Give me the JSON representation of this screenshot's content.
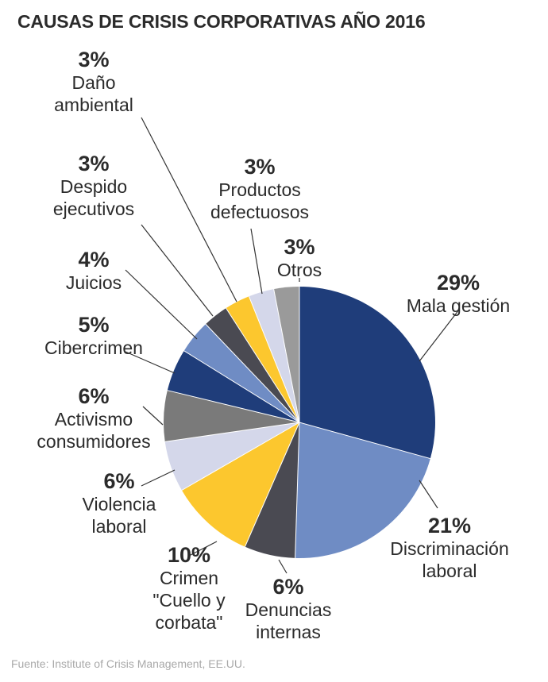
{
  "title": "CAUSAS DE CRISIS CORPORATIVAS AÑO 2016",
  "source": "Fuente: Institute of Crisis Management, EE.UU.",
  "chart_data": {
    "type": "pie",
    "title": "CAUSAS DE CRISIS CORPORATIVAS AÑO 2016",
    "unit": "%",
    "slices": [
      {
        "label_lines": [
          "Mala gestión"
        ],
        "value": 29,
        "pct_text": "29%",
        "color": "#1f3d7a"
      },
      {
        "label_lines": [
          "Discriminación",
          "laboral"
        ],
        "value": 21,
        "pct_text": "21%",
        "color": "#6f8cc4"
      },
      {
        "label_lines": [
          "Denuncias",
          "internas"
        ],
        "value": 6,
        "pct_text": "6%",
        "color": "#4a4a52"
      },
      {
        "label_lines": [
          "Crimen",
          "\"Cuello y",
          "corbata\""
        ],
        "value": 10,
        "pct_text": "10%",
        "color": "#fcc72e"
      },
      {
        "label_lines": [
          "Violencia",
          "laboral"
        ],
        "value": 6,
        "pct_text": "6%",
        "color": "#d4d7ea"
      },
      {
        "label_lines": [
          "Activismo",
          "consumidores"
        ],
        "value": 6,
        "pct_text": "6%",
        "color": "#7a7a7a"
      },
      {
        "label_lines": [
          "Cibercrimen"
        ],
        "value": 5,
        "pct_text": "5%",
        "color": "#1f3d7a"
      },
      {
        "label_lines": [
          "Juicios"
        ],
        "value": 4,
        "pct_text": "4%",
        "color": "#6f8cc4"
      },
      {
        "label_lines": [
          "Despido",
          "ejecutivos"
        ],
        "value": 3,
        "pct_text": "3%",
        "color": "#4a4a52"
      },
      {
        "label_lines": [
          "Daño",
          "ambiental"
        ],
        "value": 3,
        "pct_text": "3%",
        "color": "#fcc72e"
      },
      {
        "label_lines": [
          "Productos",
          "defectuosos"
        ],
        "value": 3,
        "pct_text": "3%",
        "color": "#d4d7ea"
      },
      {
        "label_lines": [
          "Otros"
        ],
        "value": 3,
        "pct_text": "3%",
        "color": "#9a9a9a"
      }
    ]
  }
}
